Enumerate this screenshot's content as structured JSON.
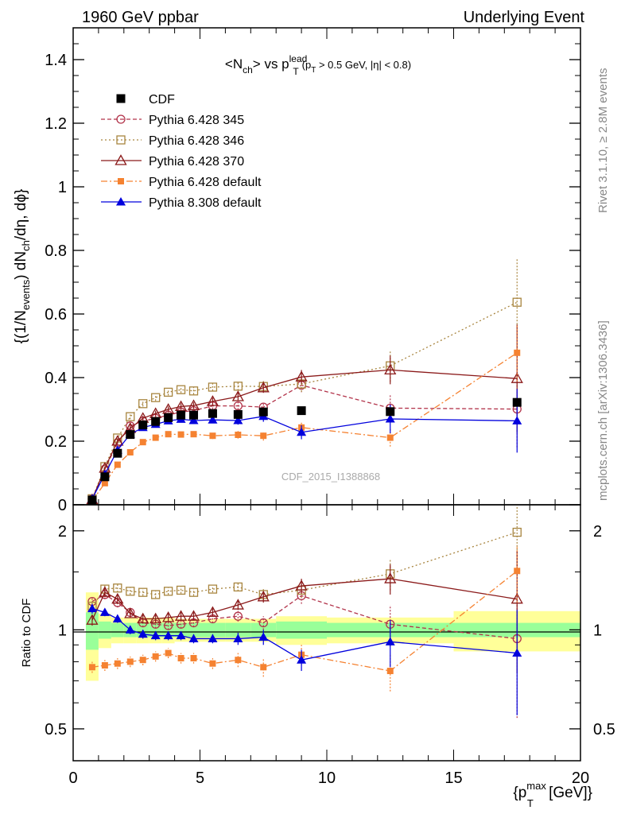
{
  "header": {
    "left": "1960 GeV ppbar",
    "right": "Underlying Event"
  },
  "side_labels": {
    "rivet": "Rivet 3.1.10, ≥ 2.8M events",
    "mcplots": "mcplots.cern.ch [arXiv:1306.3436]"
  },
  "colors": {
    "cdf": "#000000",
    "p345": "#b2334a",
    "p346": "#a8853f",
    "p370": "#8b1a1a",
    "p6def": "#f58231",
    "p8def": "#0000dd",
    "band_inner": "#99ff99",
    "band_outer": "#ffff99"
  },
  "chart_data": [
    {
      "type": "scatter",
      "panel": "main",
      "title": "<N_ch> vs p_T^lead (p_T > 0.5 GeV, |η| < 0.8)",
      "title_parts": {
        "a": "<N",
        "a_sub": "ch",
        "b": "> vs p",
        "b_sup": "lead",
        "b_sub": "T",
        "c": "(p",
        "c_sub": "T",
        "d": " > 0.5 GeV, |η| < 0.8)"
      },
      "ylabel": "{(1/N_events) dN_ch/dη, dϕ}",
      "ylabel_parts": {
        "a": "{(1/N",
        "a_sub": "events",
        "b": ") dN",
        "b_sub": "ch",
        "c": "/dη, dϕ}"
      },
      "watermark": "CDF_2015_I1388868",
      "xlim": [
        0,
        20
      ],
      "ylim": [
        0,
        1.5
      ],
      "y_ticks": [
        0,
        0.2,
        0.4,
        0.6,
        0.8,
        1,
        1.2,
        1.4
      ],
      "y_tick_labels": [
        "0",
        "0.2",
        "0.4",
        "0.6",
        "0.8",
        "1",
        "1.2",
        "1.4"
      ],
      "legend_position": "top-left",
      "series": [
        {
          "name": "CDF",
          "x": [
            0.75,
            1.25,
            1.75,
            2.25,
            2.75,
            3.25,
            3.75,
            4.25,
            4.75,
            5.5,
            6.5,
            7.5,
            9,
            12.5,
            17.5
          ],
          "y": [
            0.015,
            0.088,
            0.162,
            0.221,
            0.251,
            0.262,
            0.274,
            0.282,
            0.282,
            0.287,
            0.284,
            0.292,
            0.296,
            0.293,
            0.322
          ]
        },
        {
          "name": "Pythia 6.428 345",
          "x": [
            0.75,
            1.25,
            1.75,
            2.25,
            2.75,
            3.25,
            3.75,
            4.25,
            4.75,
            5.5,
            6.5,
            7.5,
            9,
            12.5,
            17.5
          ],
          "y": [
            0.018,
            0.112,
            0.195,
            0.248,
            0.263,
            0.272,
            0.282,
            0.292,
            0.296,
            0.311,
            0.311,
            0.307,
            0.376,
            0.304,
            0.301
          ],
          "err": [
            0.004,
            0.006,
            0.008,
            0.008,
            0.008,
            0.008,
            0.009,
            0.009,
            0.01,
            0.01,
            0.012,
            0.015,
            0.022,
            0.045,
            0.12
          ]
        },
        {
          "name": "Pythia 6.428 346",
          "x": [
            0.75,
            1.25,
            1.75,
            2.25,
            2.75,
            3.25,
            3.75,
            4.25,
            4.75,
            5.5,
            6.5,
            7.5,
            9,
            12.5,
            17.5
          ],
          "y": [
            0.019,
            0.12,
            0.21,
            0.277,
            0.318,
            0.337,
            0.354,
            0.362,
            0.358,
            0.37,
            0.373,
            0.372,
            0.38,
            0.437,
            0.637
          ],
          "err": [
            0.004,
            0.006,
            0.008,
            0.008,
            0.009,
            0.01,
            0.01,
            0.01,
            0.011,
            0.012,
            0.014,
            0.017,
            0.025,
            0.05,
            0.14
          ]
        },
        {
          "name": "Pythia 6.428 370",
          "x": [
            0.75,
            1.25,
            1.75,
            2.25,
            2.75,
            3.25,
            3.75,
            4.25,
            4.75,
            5.5,
            6.5,
            7.5,
            9,
            12.5,
            17.5
          ],
          "y": [
            0.016,
            0.115,
            0.2,
            0.24,
            0.272,
            0.287,
            0.3,
            0.309,
            0.312,
            0.325,
            0.34,
            0.368,
            0.402,
            0.424,
            0.397
          ],
          "err": [
            0.004,
            0.006,
            0.008,
            0.008,
            0.008,
            0.009,
            0.009,
            0.01,
            0.01,
            0.011,
            0.013,
            0.016,
            0.022,
            0.045,
            0.17
          ]
        },
        {
          "name": "Pythia 6.428 default",
          "x": [
            0.75,
            1.25,
            1.75,
            2.25,
            2.75,
            3.25,
            3.75,
            4.25,
            4.75,
            5.5,
            6.5,
            7.5,
            9,
            12.5,
            17.5
          ],
          "y": [
            0.012,
            0.068,
            0.126,
            0.165,
            0.197,
            0.211,
            0.222,
            0.221,
            0.222,
            0.217,
            0.22,
            0.217,
            0.243,
            0.211,
            0.478
          ],
          "err": [
            0.003,
            0.005,
            0.006,
            0.007,
            0.007,
            0.008,
            0.008,
            0.008,
            0.009,
            0.01,
            0.012,
            0.015,
            0.02,
            0.028,
            0.09
          ]
        },
        {
          "name": "Pythia 8.308 default",
          "x": [
            0.75,
            1.25,
            1.75,
            2.25,
            2.75,
            3.25,
            3.75,
            4.25,
            4.75,
            5.5,
            6.5,
            7.5,
            9,
            12.5,
            17.5
          ],
          "y": [
            0.019,
            0.096,
            0.172,
            0.222,
            0.243,
            0.253,
            0.264,
            0.269,
            0.265,
            0.267,
            0.265,
            0.278,
            0.228,
            0.27,
            0.264
          ],
          "err": [
            0.004,
            0.005,
            0.006,
            0.007,
            0.007,
            0.008,
            0.008,
            0.008,
            0.009,
            0.01,
            0.013,
            0.017,
            0.022,
            0.045,
            0.1
          ]
        }
      ]
    },
    {
      "type": "scatter",
      "panel": "ratio",
      "ylabel": "Ratio to CDF",
      "xlabel": "{p_T^max [GeV]}",
      "xlabel_parts": {
        "a": "{p",
        "a_sup": "max",
        "a_sub": "T",
        "b": " [GeV]}"
      },
      "scale": "log",
      "xlim": [
        0,
        20
      ],
      "ylim": [
        0.4,
        2.4
      ],
      "x_ticks": [
        0,
        5,
        10,
        15,
        20
      ],
      "x_tick_labels": [
        "0",
        "5",
        "10",
        "15",
        "20"
      ],
      "y_ticks": [
        0.5,
        1,
        2
      ],
      "y_tick_labels": [
        "0.5",
        "1",
        "2"
      ],
      "reference_band": {
        "x_edges": [
          0.5,
          1,
          1.5,
          2,
          2.5,
          3,
          3.5,
          4,
          4.5,
          5,
          6,
          7,
          8,
          10,
          15,
          20
        ],
        "inner": [
          0.13,
          0.06,
          0.05,
          0.05,
          0.05,
          0.05,
          0.05,
          0.05,
          0.05,
          0.05,
          0.05,
          0.05,
          0.06,
          0.05,
          0.05
        ],
        "outer": [
          0.3,
          0.12,
          0.09,
          0.09,
          0.09,
          0.09,
          0.09,
          0.08,
          0.08,
          0.08,
          0.08,
          0.08,
          0.1,
          0.09,
          0.14
        ]
      },
      "series": [
        {
          "name": "Pythia 6.428 345",
          "x": [
            0.75,
            1.25,
            1.75,
            2.25,
            2.75,
            3.25,
            3.75,
            4.25,
            4.75,
            5.5,
            6.5,
            7.5,
            9,
            12.5,
            17.5
          ],
          "y": [
            1.22,
            1.28,
            1.21,
            1.13,
            1.05,
            1.04,
            1.03,
            1.04,
            1.05,
            1.08,
            1.1,
            1.05,
            1.27,
            1.04,
            0.94
          ],
          "err": [
            0.04,
            0.04,
            0.04,
            0.03,
            0.03,
            0.03,
            0.03,
            0.03,
            0.03,
            0.03,
            0.04,
            0.05,
            0.07,
            0.15,
            0.4
          ]
        },
        {
          "name": "Pythia 6.428 346",
          "x": [
            0.75,
            1.25,
            1.75,
            2.25,
            2.75,
            3.25,
            3.75,
            4.25,
            4.75,
            5.5,
            6.5,
            7.5,
            9,
            12.5,
            17.5
          ],
          "y": [
            1.18,
            1.33,
            1.34,
            1.31,
            1.3,
            1.28,
            1.31,
            1.32,
            1.3,
            1.33,
            1.35,
            1.28,
            1.32,
            1.48,
            1.98
          ],
          "err": [
            0.04,
            0.04,
            0.04,
            0.03,
            0.03,
            0.03,
            0.03,
            0.03,
            0.03,
            0.03,
            0.04,
            0.05,
            0.07,
            0.16,
            0.45
          ]
        },
        {
          "name": "Pythia 6.428 370",
          "x": [
            0.75,
            1.25,
            1.75,
            2.25,
            2.75,
            3.25,
            3.75,
            4.25,
            4.75,
            5.5,
            6.5,
            7.5,
            9,
            12.5,
            17.5
          ],
          "y": [
            1.07,
            1.3,
            1.24,
            1.12,
            1.08,
            1.08,
            1.09,
            1.1,
            1.1,
            1.13,
            1.19,
            1.26,
            1.36,
            1.43,
            1.24
          ],
          "err": [
            0.04,
            0.04,
            0.04,
            0.03,
            0.03,
            0.03,
            0.03,
            0.03,
            0.03,
            0.03,
            0.04,
            0.05,
            0.07,
            0.15,
            0.5
          ]
        },
        {
          "name": "Pythia 6.428 default",
          "x": [
            0.75,
            1.25,
            1.75,
            2.25,
            2.75,
            3.25,
            3.75,
            4.25,
            4.75,
            5.5,
            6.5,
            7.5,
            9,
            12.5,
            17.5
          ],
          "y": [
            0.77,
            0.78,
            0.79,
            0.8,
            0.81,
            0.83,
            0.85,
            0.82,
            0.82,
            0.79,
            0.81,
            0.77,
            0.84,
            0.75,
            1.51
          ],
          "err": [
            0.03,
            0.03,
            0.03,
            0.03,
            0.03,
            0.03,
            0.03,
            0.03,
            0.03,
            0.03,
            0.04,
            0.05,
            0.06,
            0.1,
            0.3
          ]
        },
        {
          "name": "Pythia 8.308 default",
          "x": [
            0.75,
            1.25,
            1.75,
            2.25,
            2.75,
            3.25,
            3.75,
            4.25,
            4.75,
            5.5,
            6.5,
            7.5,
            9,
            12.5,
            17.5
          ],
          "y": [
            1.16,
            1.13,
            1.08,
            1.0,
            0.97,
            0.96,
            0.96,
            0.96,
            0.94,
            0.94,
            0.94,
            0.95,
            0.81,
            0.92,
            0.85
          ],
          "err": [
            0.04,
            0.03,
            0.03,
            0.03,
            0.03,
            0.03,
            0.03,
            0.03,
            0.03,
            0.03,
            0.04,
            0.05,
            0.06,
            0.15,
            0.3
          ]
        }
      ]
    }
  ]
}
